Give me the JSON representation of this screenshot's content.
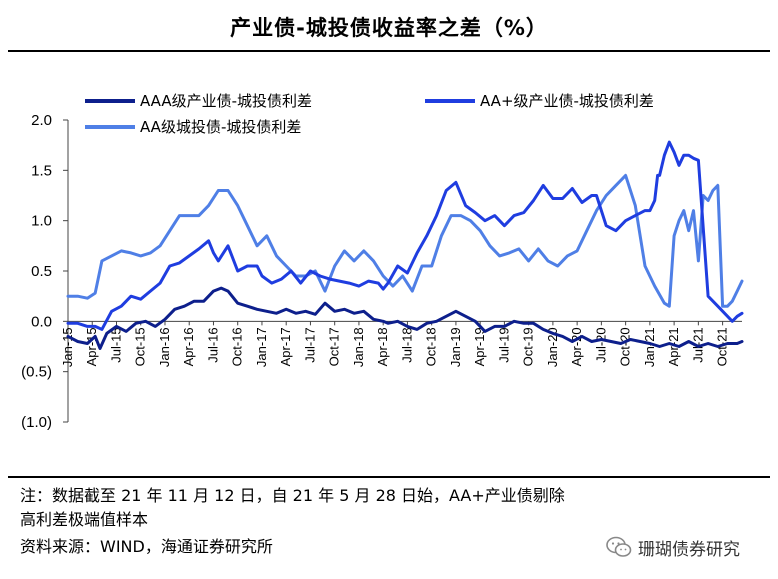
{
  "title": "产业债-城投债收益率之差（%）",
  "notes": {
    "line1": "注：数据截至 21 年 11 月 12 日，自 21 年 5 月 28 日始，AA+产业债剔除",
    "line2": "高利差极端值样本",
    "source": "资料来源：WIND，海通证券研究所"
  },
  "watermark": {
    "text": "珊瑚债券研究",
    "icon": "wechat-icon"
  },
  "chart_data": {
    "type": "line",
    "title": "产业债-城投债收益率之差（%）",
    "xlabel": "",
    "ylabel": "",
    "ylim": [
      -1.0,
      2.0
    ],
    "yticks": [
      2.0,
      1.5,
      1.0,
      0.5,
      0.0,
      -0.5,
      -1.0
    ],
    "ytick_labels": [
      "2.0",
      "1.5",
      "1.0",
      "0.5",
      "0.0",
      "(0.5)",
      "(1.0)"
    ],
    "xlim": [
      2015.0,
      2021.95
    ],
    "xticks": [
      2015.0,
      2015.25,
      2015.5,
      2015.75,
      2016.0,
      2016.25,
      2016.5,
      2016.75,
      2017.0,
      2017.25,
      2017.5,
      2017.75,
      2018.0,
      2018.25,
      2018.5,
      2018.75,
      2019.0,
      2019.25,
      2019.5,
      2019.75,
      2020.0,
      2020.25,
      2020.5,
      2020.75,
      2021.0,
      2021.25,
      2021.5,
      2021.75
    ],
    "xtick_labels": [
      "Jan-15",
      "Apr-15",
      "Jul-15",
      "Oct-15",
      "Jan-16",
      "Apr-16",
      "Jul-16",
      "Oct-16",
      "Jan-17",
      "Apr-17",
      "Jul-17",
      "Oct-17",
      "Jan-18",
      "Apr-18",
      "Jul-18",
      "Oct-18",
      "Jan-19",
      "Apr-19",
      "Jul-19",
      "Oct-19",
      "Jan-20",
      "Apr-20",
      "Jul-20",
      "Oct-20",
      "Jan-21",
      "Apr-21",
      "Jul-21",
      "Oct-21"
    ],
    "legend_position": "top",
    "series": [
      {
        "name": "AAA级产业债-城投债利差",
        "color": "#0d1f8c",
        "x": [
          2015.0,
          2015.1,
          2015.2,
          2015.28,
          2015.33,
          2015.4,
          2015.5,
          2015.6,
          2015.7,
          2015.8,
          2015.9,
          2016.0,
          2016.1,
          2016.2,
          2016.3,
          2016.4,
          2016.5,
          2016.58,
          2016.65,
          2016.75,
          2016.85,
          2016.95,
          2017.05,
          2017.15,
          2017.25,
          2017.35,
          2017.45,
          2017.55,
          2017.65,
          2017.75,
          2017.85,
          2017.95,
          2018.05,
          2018.15,
          2018.25,
          2018.3,
          2018.4,
          2018.5,
          2018.6,
          2018.7,
          2018.8,
          2018.9,
          2019.0,
          2019.1,
          2019.2,
          2019.3,
          2019.4,
          2019.5,
          2019.6,
          2019.7,
          2019.8,
          2019.9,
          2020.0,
          2020.1,
          2020.2,
          2020.3,
          2020.4,
          2020.5,
          2020.6,
          2020.7,
          2020.8,
          2020.9,
          2021.0,
          2021.1,
          2021.2,
          2021.3,
          2021.4,
          2021.5,
          2021.6,
          2021.7,
          2021.8,
          2021.9,
          2021.95
        ],
        "values": [
          -0.15,
          -0.2,
          -0.22,
          -0.15,
          -0.27,
          -0.12,
          -0.05,
          -0.1,
          -0.02,
          0.0,
          -0.05,
          0.02,
          0.12,
          0.15,
          0.2,
          0.2,
          0.3,
          0.33,
          0.3,
          0.18,
          0.15,
          0.12,
          0.1,
          0.08,
          0.12,
          0.08,
          0.1,
          0.07,
          0.18,
          0.1,
          0.12,
          0.08,
          0.1,
          0.02,
          0.0,
          -0.02,
          0.0,
          -0.05,
          -0.08,
          -0.02,
          0.0,
          0.05,
          0.1,
          0.05,
          0.0,
          -0.1,
          -0.05,
          -0.05,
          0.0,
          -0.02,
          -0.02,
          -0.08,
          -0.12,
          -0.15,
          -0.2,
          -0.15,
          -0.2,
          -0.18,
          -0.2,
          -0.22,
          -0.18,
          -0.2,
          -0.22,
          -0.25,
          -0.22,
          -0.25,
          -0.2,
          -0.25,
          -0.22,
          -0.25,
          -0.22,
          -0.22,
          -0.2
        ]
      },
      {
        "name": "AA+级产业债-城投债利差",
        "color": "#1f3de0",
        "x": [
          2015.0,
          2015.1,
          2015.2,
          2015.28,
          2015.35,
          2015.45,
          2015.55,
          2015.65,
          2015.75,
          2015.85,
          2015.95,
          2016.05,
          2016.15,
          2016.25,
          2016.35,
          2016.45,
          2016.5,
          2016.55,
          2016.65,
          2016.75,
          2016.85,
          2016.95,
          2017.0,
          2017.1,
          2017.2,
          2017.3,
          2017.4,
          2017.5,
          2017.6,
          2017.7,
          2017.8,
          2017.9,
          2018.0,
          2018.1,
          2018.2,
          2018.25,
          2018.3,
          2018.4,
          2018.5,
          2018.6,
          2018.7,
          2018.8,
          2018.9,
          2019.0,
          2019.1,
          2019.2,
          2019.3,
          2019.4,
          2019.5,
          2019.6,
          2019.7,
          2019.8,
          2019.9,
          2020.0,
          2020.1,
          2020.2,
          2020.3,
          2020.4,
          2020.45,
          2020.55,
          2020.65,
          2020.75,
          2020.85,
          2020.95,
          2021.0,
          2021.05,
          2021.08,
          2021.1,
          2021.15,
          2021.2,
          2021.25,
          2021.3,
          2021.35,
          2021.4,
          2021.45,
          2021.5,
          2021.6,
          2021.7,
          2021.8,
          2021.85,
          2021.9,
          2021.95
        ],
        "values": [
          -0.02,
          -0.02,
          -0.05,
          -0.05,
          -0.08,
          0.1,
          0.15,
          0.25,
          0.22,
          0.3,
          0.38,
          0.55,
          0.58,
          0.65,
          0.72,
          0.8,
          0.68,
          0.6,
          0.75,
          0.5,
          0.55,
          0.55,
          0.45,
          0.38,
          0.42,
          0.5,
          0.38,
          0.5,
          0.45,
          0.42,
          0.4,
          0.38,
          0.35,
          0.4,
          0.38,
          0.32,
          0.38,
          0.55,
          0.48,
          0.68,
          0.85,
          1.05,
          1.3,
          1.38,
          1.15,
          1.08,
          1.0,
          1.05,
          0.95,
          1.05,
          1.08,
          1.2,
          1.35,
          1.22,
          1.22,
          1.32,
          1.18,
          1.25,
          1.25,
          0.95,
          0.9,
          1.0,
          1.05,
          1.1,
          1.1,
          1.2,
          1.45,
          1.45,
          1.65,
          1.78,
          1.68,
          1.55,
          1.65,
          1.65,
          1.62,
          1.6,
          0.25,
          0.15,
          0.05,
          0.0,
          0.05,
          0.08
        ]
      },
      {
        "name": "AA级城投债-城投债利差",
        "color": "#4f7fe6",
        "x": [
          2015.0,
          2015.1,
          2015.2,
          2015.28,
          2015.35,
          2015.45,
          2015.55,
          2015.65,
          2015.75,
          2015.85,
          2015.95,
          2016.05,
          2016.15,
          2016.25,
          2016.35,
          2016.45,
          2016.55,
          2016.65,
          2016.75,
          2016.85,
          2016.95,
          2017.05,
          2017.15,
          2017.25,
          2017.35,
          2017.45,
          2017.55,
          2017.65,
          2017.75,
          2017.85,
          2017.95,
          2018.05,
          2018.15,
          2018.25,
          2018.35,
          2018.45,
          2018.55,
          2018.65,
          2018.75,
          2018.85,
          2018.95,
          2019.05,
          2019.15,
          2019.25,
          2019.35,
          2019.45,
          2019.55,
          2019.65,
          2019.75,
          2019.85,
          2019.95,
          2020.05,
          2020.15,
          2020.25,
          2020.35,
          2020.45,
          2020.55,
          2020.65,
          2020.75,
          2020.85,
          2020.95,
          2021.05,
          2021.15,
          2021.2,
          2021.25,
          2021.3,
          2021.35,
          2021.4,
          2021.45,
          2021.5,
          2021.55,
          2021.6,
          2021.65,
          2021.7,
          2021.75,
          2021.8,
          2021.85,
          2021.9,
          2021.95
        ],
        "values": [
          0.25,
          0.25,
          0.23,
          0.28,
          0.6,
          0.65,
          0.7,
          0.68,
          0.65,
          0.68,
          0.75,
          0.9,
          1.05,
          1.05,
          1.05,
          1.15,
          1.3,
          1.3,
          1.15,
          0.95,
          0.75,
          0.85,
          0.65,
          0.55,
          0.45,
          0.45,
          0.5,
          0.3,
          0.55,
          0.7,
          0.6,
          0.7,
          0.6,
          0.45,
          0.35,
          0.45,
          0.3,
          0.55,
          0.55,
          0.85,
          1.05,
          1.05,
          1.0,
          0.9,
          0.75,
          0.65,
          0.68,
          0.72,
          0.6,
          0.72,
          0.6,
          0.55,
          0.65,
          0.7,
          0.9,
          1.1,
          1.25,
          1.35,
          1.45,
          1.15,
          0.55,
          0.35,
          0.18,
          0.15,
          0.85,
          1.0,
          1.1,
          0.9,
          1.1,
          0.6,
          1.25,
          1.2,
          1.3,
          1.35,
          0.15,
          0.15,
          0.2,
          0.3,
          0.4
        ]
      }
    ]
  }
}
